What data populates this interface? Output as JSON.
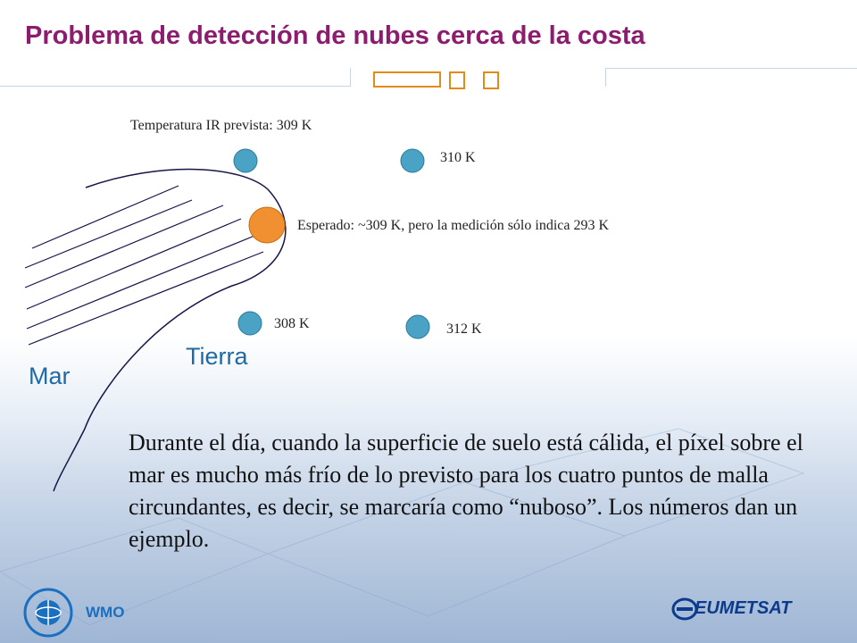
{
  "title": "Problema de detección de nubes cerca de la costa",
  "points": {
    "center_label": "Temperatura IR prevista: 309 K",
    "top_right": "310 K",
    "coast_pixel": "Esperado: ~309 K, pero la medición sólo indica 293 K",
    "bottom_left": "308 K",
    "bottom_right": "312 K"
  },
  "regions": {
    "sea": "Mar",
    "land": "Tierra"
  },
  "body": "Durante el día, cuando la superficie de suelo está cálida, el píxel sobre el mar es mucho más frío de lo previsto para los cuatro puntos de malla circundantes, es decir, se marcaría como “nuboso”. Los números dan un ejemplo.",
  "footer": {
    "left_org": "WMO",
    "right_org": "EUMETSAT"
  },
  "colors": {
    "title": "#8c1d6e",
    "grid_point": "#4aa3c4",
    "sea_pixel": "#f09030",
    "accent_bars": "#e38a1c",
    "region_text": "#1f6aa6"
  }
}
